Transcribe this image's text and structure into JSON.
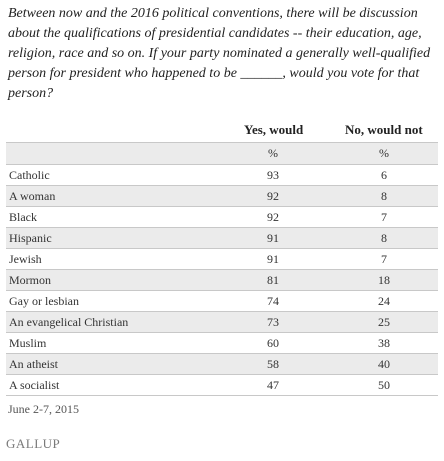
{
  "question": "Between now and the 2016 political conventions, there will be discussion about the qualifications of presidential candidates -- their education, age, religion, race and so on. If your party nominated a generally well-qualified person for president who happened to be ______, would you vote for that person?",
  "table": {
    "col_headers": [
      "Yes, would",
      "No, would not"
    ],
    "units": [
      "%",
      "%"
    ]
  },
  "chart_data": {
    "type": "table",
    "columns": [
      "Yes, would",
      "No, would not"
    ],
    "rows": [
      {
        "label": "Catholic",
        "yes": "93",
        "no": "6"
      },
      {
        "label": "A woman",
        "yes": "92",
        "no": "8"
      },
      {
        "label": "Black",
        "yes": "92",
        "no": "7"
      },
      {
        "label": "Hispanic",
        "yes": "91",
        "no": "8"
      },
      {
        "label": "Jewish",
        "yes": "91",
        "no": "7"
      },
      {
        "label": "Mormon",
        "yes": "81",
        "no": "18"
      },
      {
        "label": "Gay or lesbian",
        "yes": "74",
        "no": "24"
      },
      {
        "label": "An evangelical Christian",
        "yes": "73",
        "no": "25"
      },
      {
        "label": "Muslim",
        "yes": "60",
        "no": "38"
      },
      {
        "label": "An atheist",
        "yes": "58",
        "no": "40"
      },
      {
        "label": "A socialist",
        "yes": "47",
        "no": "50"
      }
    ]
  },
  "footer": {
    "date": "June 2-7, 2015",
    "logo": "GALLUP"
  }
}
